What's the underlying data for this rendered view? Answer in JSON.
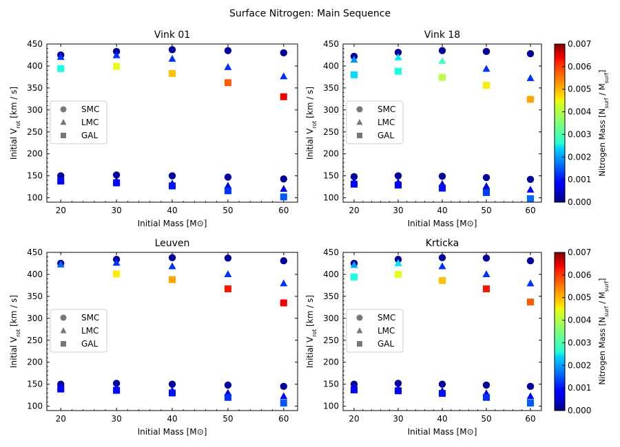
{
  "figure": {
    "title": "Surface Nitrogen: Main Sequence"
  },
  "colorbar": {
    "label": "Nitrogen Mass [N_surf / M_surf]",
    "min": 0.0,
    "max": 0.007,
    "ticks": [
      "0.000",
      "0.001",
      "0.002",
      "0.003",
      "0.004",
      "0.005",
      "0.006",
      "0.007"
    ],
    "colormap": "jet"
  },
  "legend": {
    "placement": "center-left",
    "entries": [
      {
        "label": "SMC",
        "marker": "circle"
      },
      {
        "label": "LMC",
        "marker": "triangle"
      },
      {
        "label": "GAL",
        "marker": "square"
      }
    ]
  },
  "chart_data": [
    {
      "type": "scatter",
      "title": "Vink 01",
      "xlabel": "Initial Mass [M⊙]",
      "ylabel": "Initial V_rot [km / s]",
      "xlim": [
        17.5,
        62.5
      ],
      "ylim": [
        90,
        450
      ],
      "xticks": [
        20,
        30,
        40,
        50,
        60
      ],
      "yticks": [
        100,
        150,
        200,
        250,
        300,
        350,
        400,
        450
      ],
      "series": [
        {
          "name": "SMC",
          "marker": "circle",
          "points": [
            {
              "x": 20,
              "y": 425,
              "n": 0.0002
            },
            {
              "x": 30,
              "y": 433,
              "n": 0.0002
            },
            {
              "x": 40,
              "y": 437,
              "n": 0.0002
            },
            {
              "x": 50,
              "y": 435,
              "n": 0.0002
            },
            {
              "x": 60,
              "y": 430,
              "n": 0.0002
            },
            {
              "x": 20,
              "y": 150,
              "n": 0.0002
            },
            {
              "x": 30,
              "y": 152,
              "n": 0.0002
            },
            {
              "x": 40,
              "y": 150,
              "n": 0.0002
            },
            {
              "x": 50,
              "y": 147,
              "n": 0.0002
            },
            {
              "x": 60,
              "y": 143,
              "n": 0.0002
            }
          ]
        },
        {
          "name": "LMC",
          "marker": "triangle",
          "points": [
            {
              "x": 20,
              "y": 420,
              "n": 0.0012
            },
            {
              "x": 30,
              "y": 424,
              "n": 0.0012
            },
            {
              "x": 40,
              "y": 416,
              "n": 0.0012
            },
            {
              "x": 50,
              "y": 397,
              "n": 0.0012
            },
            {
              "x": 60,
              "y": 376,
              "n": 0.0012
            },
            {
              "x": 20,
              "y": 140,
              "n": 0.0006
            },
            {
              "x": 30,
              "y": 138,
              "n": 0.0006
            },
            {
              "x": 40,
              "y": 132,
              "n": 0.0006
            },
            {
              "x": 50,
              "y": 127,
              "n": 0.0006
            },
            {
              "x": 60,
              "y": 120,
              "n": 0.0009
            }
          ]
        },
        {
          "name": "GAL",
          "marker": "square",
          "points": [
            {
              "x": 20,
              "y": 394,
              "n": 0.0028
            },
            {
              "x": 30,
              "y": 399,
              "n": 0.0042
            },
            {
              "x": 40,
              "y": 383,
              "n": 0.0048
            },
            {
              "x": 50,
              "y": 362,
              "n": 0.0055
            },
            {
              "x": 60,
              "y": 330,
              "n": 0.0062
            },
            {
              "x": 20,
              "y": 138,
              "n": 0.0009
            },
            {
              "x": 30,
              "y": 134,
              "n": 0.0009
            },
            {
              "x": 40,
              "y": 127,
              "n": 0.001
            },
            {
              "x": 50,
              "y": 116,
              "n": 0.0012
            },
            {
              "x": 60,
              "y": 102,
              "n": 0.0015
            }
          ]
        }
      ]
    },
    {
      "type": "scatter",
      "title": "Vink 18",
      "xlabel": "Initial Mass [M⊙]",
      "ylabel": "Initial V_rot [km / s]",
      "xlim": [
        17.5,
        62.5
      ],
      "ylim": [
        90,
        450
      ],
      "xticks": [
        20,
        30,
        40,
        50,
        60
      ],
      "yticks": [
        100,
        150,
        200,
        250,
        300,
        350,
        400,
        450
      ],
      "series": [
        {
          "name": "SMC",
          "marker": "circle",
          "points": [
            {
              "x": 20,
              "y": 422,
              "n": 0.0002
            },
            {
              "x": 30,
              "y": 431,
              "n": 0.0002
            },
            {
              "x": 40,
              "y": 435,
              "n": 0.0002
            },
            {
              "x": 50,
              "y": 433,
              "n": 0.0002
            },
            {
              "x": 60,
              "y": 428,
              "n": 0.0002
            },
            {
              "x": 20,
              "y": 148,
              "n": 0.0002
            },
            {
              "x": 30,
              "y": 150,
              "n": 0.0002
            },
            {
              "x": 40,
              "y": 149,
              "n": 0.0002
            },
            {
              "x": 50,
              "y": 146,
              "n": 0.0002
            },
            {
              "x": 60,
              "y": 142,
              "n": 0.0002
            }
          ]
        },
        {
          "name": "LMC",
          "marker": "triangle",
          "points": [
            {
              "x": 20,
              "y": 414,
              "n": 0.0019
            },
            {
              "x": 30,
              "y": 419,
              "n": 0.0025
            },
            {
              "x": 40,
              "y": 411,
              "n": 0.0031
            },
            {
              "x": 50,
              "y": 393,
              "n": 0.0012
            },
            {
              "x": 60,
              "y": 372,
              "n": 0.0012
            },
            {
              "x": 20,
              "y": 136,
              "n": 0.0006
            },
            {
              "x": 30,
              "y": 135,
              "n": 0.0006
            },
            {
              "x": 40,
              "y": 131,
              "n": 0.0006
            },
            {
              "x": 50,
              "y": 126,
              "n": 0.0006
            },
            {
              "x": 60,
              "y": 118,
              "n": 0.0009
            }
          ]
        },
        {
          "name": "GAL",
          "marker": "square",
          "points": [
            {
              "x": 20,
              "y": 380,
              "n": 0.0024
            },
            {
              "x": 30,
              "y": 388,
              "n": 0.0028
            },
            {
              "x": 40,
              "y": 374,
              "n": 0.0039
            },
            {
              "x": 50,
              "y": 356,
              "n": 0.0045
            },
            {
              "x": 60,
              "y": 324,
              "n": 0.005
            },
            {
              "x": 20,
              "y": 131,
              "n": 0.0009
            },
            {
              "x": 30,
              "y": 129,
              "n": 0.0009
            },
            {
              "x": 40,
              "y": 122,
              "n": 0.001
            },
            {
              "x": 50,
              "y": 112,
              "n": 0.0013
            },
            {
              "x": 60,
              "y": 98,
              "n": 0.0016
            }
          ]
        }
      ]
    },
    {
      "type": "scatter",
      "title": "Leuven",
      "xlabel": "Initial Mass [M⊙]",
      "ylabel": "Initial V_rot [km / s]",
      "xlim": [
        17.5,
        62.5
      ],
      "ylim": [
        90,
        450
      ],
      "xticks": [
        20,
        30,
        40,
        50,
        60
      ],
      "yticks": [
        100,
        150,
        200,
        250,
        300,
        350,
        400,
        450
      ],
      "series": [
        {
          "name": "SMC",
          "marker": "circle",
          "points": [
            {
              "x": 20,
              "y": 425,
              "n": 0.0002
            },
            {
              "x": 30,
              "y": 434,
              "n": 0.0002
            },
            {
              "x": 40,
              "y": 438,
              "n": 0.0002
            },
            {
              "x": 50,
              "y": 437,
              "n": 0.0002
            },
            {
              "x": 60,
              "y": 431,
              "n": 0.0002
            },
            {
              "x": 20,
              "y": 150,
              "n": 0.0002
            },
            {
              "x": 30,
              "y": 152,
              "n": 0.0002
            },
            {
              "x": 40,
              "y": 150,
              "n": 0.0002
            },
            {
              "x": 50,
              "y": 148,
              "n": 0.0002
            },
            {
              "x": 60,
              "y": 145,
              "n": 0.0002
            }
          ]
        },
        {
          "name": "LMC",
          "marker": "triangle",
          "points": [
            {
              "x": 20,
              "y": 422,
              "n": 0.0016
            },
            {
              "x": 30,
              "y": 426,
              "n": 0.0012
            },
            {
              "x": 40,
              "y": 418,
              "n": 0.0012
            },
            {
              "x": 50,
              "y": 400,
              "n": 0.0012
            },
            {
              "x": 60,
              "y": 379,
              "n": 0.0012
            },
            {
              "x": 20,
              "y": 142,
              "n": 0.0006
            },
            {
              "x": 30,
              "y": 140,
              "n": 0.0006
            },
            {
              "x": 40,
              "y": 135,
              "n": 0.0006
            },
            {
              "x": 50,
              "y": 130,
              "n": 0.0006
            },
            {
              "x": 60,
              "y": 122,
              "n": 0.0009
            }
          ]
        },
        {
          "name": "GAL",
          "marker": "square",
          "points": [
            {
              "x": 20,
              "y": 139,
              "n": 0.0009
            },
            {
              "x": 30,
              "y": 136,
              "n": 0.0009
            },
            {
              "x": 40,
              "y": 130,
              "n": 0.001
            },
            {
              "x": 50,
              "y": 120,
              "n": 0.0012
            },
            {
              "x": 60,
              "y": 107,
              "n": 0.0015
            },
            {
              "x": 30,
              "y": 401,
              "n": 0.0045
            },
            {
              "x": 40,
              "y": 388,
              "n": 0.005
            },
            {
              "x": 50,
              "y": 367,
              "n": 0.006
            },
            {
              "x": 60,
              "y": 335,
              "n": 0.0062
            }
          ]
        }
      ]
    },
    {
      "type": "scatter",
      "title": "Krticka",
      "xlabel": "Initial Mass [M⊙]",
      "ylabel": "Initial V_rot [km / s]",
      "xlim": [
        17.5,
        62.5
      ],
      "ylim": [
        90,
        450
      ],
      "xticks": [
        20,
        30,
        40,
        50,
        60
      ],
      "yticks": [
        100,
        150,
        200,
        250,
        300,
        350,
        400,
        450
      ],
      "series": [
        {
          "name": "SMC",
          "marker": "circle",
          "points": [
            {
              "x": 20,
              "y": 425,
              "n": 0.0002
            },
            {
              "x": 30,
              "y": 434,
              "n": 0.0002
            },
            {
              "x": 40,
              "y": 438,
              "n": 0.0002
            },
            {
              "x": 50,
              "y": 437,
              "n": 0.0002
            },
            {
              "x": 60,
              "y": 431,
              "n": 0.0002
            },
            {
              "x": 20,
              "y": 150,
              "n": 0.0002
            },
            {
              "x": 30,
              "y": 152,
              "n": 0.0002
            },
            {
              "x": 40,
              "y": 150,
              "n": 0.0002
            },
            {
              "x": 50,
              "y": 148,
              "n": 0.0002
            },
            {
              "x": 60,
              "y": 145,
              "n": 0.0002
            }
          ]
        },
        {
          "name": "LMC",
          "marker": "triangle",
          "points": [
            {
              "x": 20,
              "y": 421,
              "n": 0.002
            },
            {
              "x": 30,
              "y": 425,
              "n": 0.0025
            },
            {
              "x": 40,
              "y": 418,
              "n": 0.0012
            },
            {
              "x": 50,
              "y": 400,
              "n": 0.0012
            },
            {
              "x": 60,
              "y": 379,
              "n": 0.0012
            },
            {
              "x": 20,
              "y": 141,
              "n": 0.0006
            },
            {
              "x": 30,
              "y": 139,
              "n": 0.0006
            },
            {
              "x": 40,
              "y": 134,
              "n": 0.0006
            },
            {
              "x": 50,
              "y": 129,
              "n": 0.0006
            },
            {
              "x": 60,
              "y": 122,
              "n": 0.0009
            }
          ]
        },
        {
          "name": "GAL",
          "marker": "square",
          "points": [
            {
              "x": 20,
              "y": 394,
              "n": 0.0028
            },
            {
              "x": 30,
              "y": 400,
              "n": 0.0042
            },
            {
              "x": 40,
              "y": 386,
              "n": 0.0048
            },
            {
              "x": 50,
              "y": 367,
              "n": 0.006
            },
            {
              "x": 60,
              "y": 337,
              "n": 0.0055
            },
            {
              "x": 20,
              "y": 137,
              "n": 0.0009
            },
            {
              "x": 30,
              "y": 135,
              "n": 0.0009
            },
            {
              "x": 40,
              "y": 129,
              "n": 0.001
            },
            {
              "x": 50,
              "y": 120,
              "n": 0.0012
            },
            {
              "x": 60,
              "y": 107,
              "n": 0.0015
            }
          ]
        }
      ]
    }
  ]
}
